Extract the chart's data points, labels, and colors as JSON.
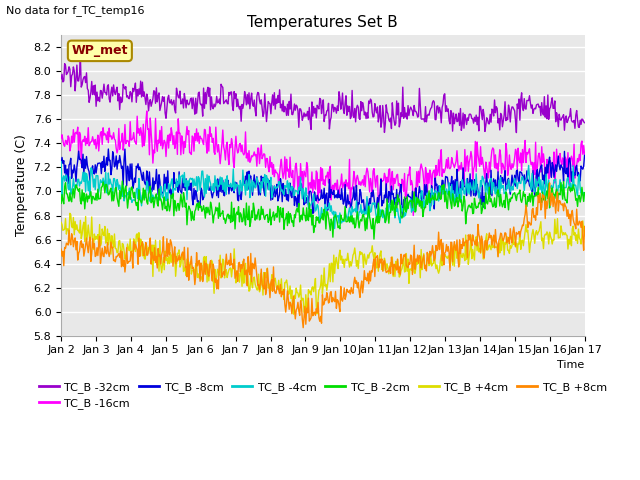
{
  "title": "Temperatures Set B",
  "subtitle": "No data for f_TC_temp16",
  "ylabel": "Temperature (C)",
  "xlabel": "Time",
  "ylim": [
    5.8,
    8.3
  ],
  "xlim": [
    0,
    15
  ],
  "xtick_labels": [
    "Jan 2",
    "Jan 3",
    "Jan 4",
    "Jan 5",
    "Jan 6",
    "Jan 7",
    "Jan 8",
    "Jan 9",
    "Jan 10",
    "Jan 11",
    "Jan 12",
    "Jan 13",
    "Jan 14",
    "Jan 15",
    "Jan 16",
    "Jan 17"
  ],
  "legend_entries": [
    "TC_B -32cm",
    "TC_B -16cm",
    "TC_B -8cm",
    "TC_B -4cm",
    "TC_B -2cm",
    "TC_B +4cm",
    "TC_B +8cm"
  ],
  "line_colors": [
    "#9900cc",
    "#ff00ff",
    "#0000dd",
    "#00cccc",
    "#00dd00",
    "#dddd00",
    "#ff8800"
  ],
  "wp_met_box_color": "#ffffaa",
  "wp_met_text_color": "#880000",
  "wp_met_border_color": "#aa8800",
  "plot_bg_color": "#e8e8e8",
  "fig_bg_color": "#ffffff",
  "grid_color": "#ffffff",
  "n_points": 600
}
